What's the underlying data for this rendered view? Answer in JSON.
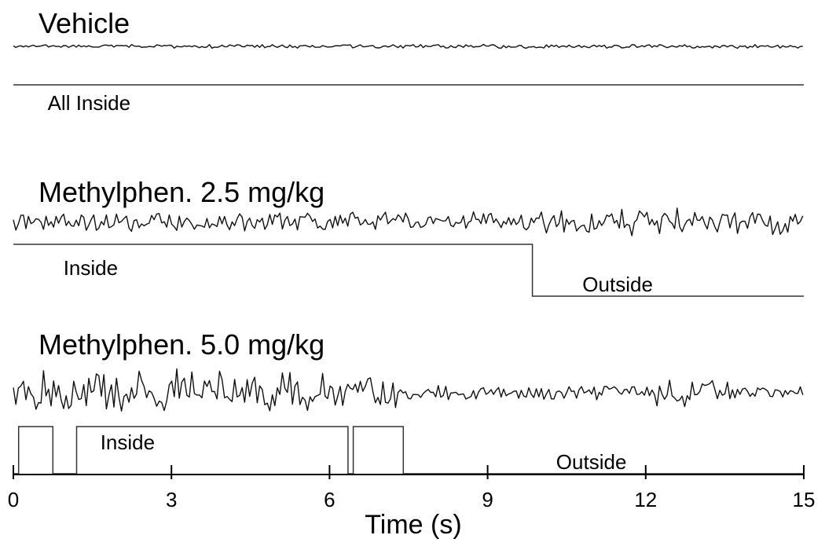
{
  "chart_data": {
    "type": "line",
    "xlabel": "Time (s)",
    "xlim": [
      0,
      15
    ],
    "x_ticks": [
      0,
      3,
      6,
      9,
      12,
      15
    ],
    "panels": [
      {
        "title": "Vehicle",
        "lfp_activity": "low",
        "state_segments": [
          {
            "start": 0,
            "end": 15,
            "state": "Inside"
          }
        ],
        "state_labels": [
          {
            "text": "All Inside",
            "t": 0.65,
            "state": "Inside"
          }
        ]
      },
      {
        "title": "Methylphen. 2.5 mg/kg",
        "lfp_activity": "medium",
        "state_segments": [
          {
            "start": 0,
            "end": 9.85,
            "state": "Inside"
          },
          {
            "start": 9.85,
            "end": 15,
            "state": "Outside"
          }
        ],
        "state_labels": [
          {
            "text": "Inside",
            "t": 0.95,
            "state": "Inside"
          },
          {
            "text": "Outside",
            "t": 10.8,
            "state": "Outside"
          }
        ]
      },
      {
        "title": "Methylphen. 5.0 mg/kg",
        "lfp_activity": "high",
        "state_segments": [
          {
            "start": 0,
            "end": 0.1,
            "state": "Outside"
          },
          {
            "start": 0.1,
            "end": 0.75,
            "state": "Inside"
          },
          {
            "start": 0.75,
            "end": 1.2,
            "state": "Outside"
          },
          {
            "start": 1.2,
            "end": 6.35,
            "state": "Inside"
          },
          {
            "start": 6.35,
            "end": 6.45,
            "state": "Outside"
          },
          {
            "start": 6.45,
            "end": 7.4,
            "state": "Inside"
          },
          {
            "start": 7.4,
            "end": 15,
            "state": "Outside"
          }
        ],
        "state_labels": [
          {
            "text": "Inside",
            "t": 1.65,
            "state": "Inside"
          },
          {
            "text": "Outside",
            "t": 10.3,
            "state": "Outside"
          }
        ]
      }
    ]
  }
}
